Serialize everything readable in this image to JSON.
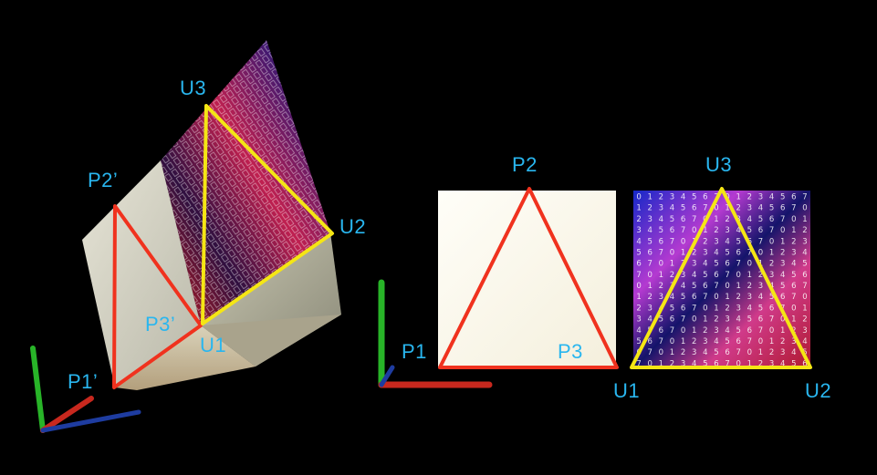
{
  "labels": {
    "p1_prime": "P1’",
    "p2_prime": "P2’",
    "p3_prime": "P3’",
    "u1_left": "U1",
    "u2_left": "U2",
    "u3_left": "U3",
    "p1": "P1",
    "p2": "P2",
    "p3": "P3",
    "u1_right": "U1",
    "u2_right": "U2",
    "u3_right": "U3"
  },
  "colors": {
    "background": "#000000",
    "label": "#29b6ef",
    "position_triangle": "#f0321e",
    "uv_triangle": "#f5e614",
    "axis_x": "#c8281e",
    "axis_y": "#28b428",
    "axis_z": "#1e3ca0",
    "surface": "#f7f4e6"
  },
  "texture_digits": [
    "0",
    "1",
    "2",
    "3",
    "4",
    "5",
    "6",
    "7"
  ],
  "icons": {
    "axes_left": "xyz-axes-gizmo-icon",
    "axes_right": "xyz-axes-gizmo-icon"
  }
}
